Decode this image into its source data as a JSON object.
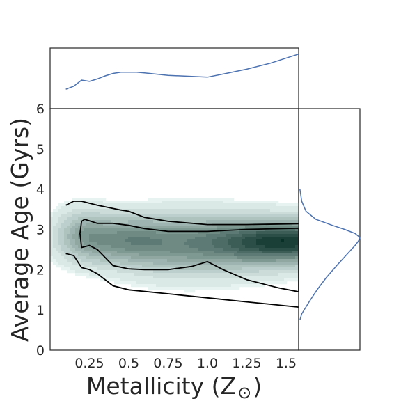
{
  "chart_data": {
    "type": "kde-joint",
    "xlabel": "Metallicity (Z",
    "xlabel_symbol": "⊙",
    "xlabel_close": ")",
    "ylabel": "Average Age (Gyrs)",
    "xlim": [
      0.0,
      1.58
    ],
    "ylim": [
      0,
      6
    ],
    "x_ticks": [
      0.25,
      0.5,
      0.75,
      1.0,
      1.25,
      1.5
    ],
    "x_tick_labels": [
      "0.25",
      "0.5",
      "0.75",
      "1.0",
      "1.25",
      "1.5"
    ],
    "y_ticks": [
      0,
      1,
      2,
      3,
      4,
      5,
      6
    ],
    "y_tick_labels": [
      "0",
      "1",
      "2",
      "3",
      "4",
      "5",
      "6"
    ],
    "colors": {
      "density": "#2e6d5c",
      "marginal": "#4c72b0",
      "contour": "#000000"
    },
    "contours": {
      "outer_upper": [
        [
          0.1,
          3.6
        ],
        [
          0.15,
          3.7
        ],
        [
          0.2,
          3.7
        ],
        [
          0.3,
          3.6
        ],
        [
          0.45,
          3.48
        ],
        [
          0.5,
          3.45
        ],
        [
          0.6,
          3.3
        ],
        [
          0.75,
          3.2
        ],
        [
          1.0,
          3.12
        ],
        [
          1.25,
          3.12
        ],
        [
          1.58,
          3.14
        ]
      ],
      "outer_lower": [
        [
          0.1,
          2.4
        ],
        [
          0.15,
          2.35
        ],
        [
          0.2,
          2.05
        ],
        [
          0.25,
          2.0
        ],
        [
          0.3,
          1.9
        ],
        [
          0.4,
          1.6
        ],
        [
          0.5,
          1.5
        ],
        [
          0.75,
          1.4
        ],
        [
          1.0,
          1.3
        ],
        [
          1.25,
          1.2
        ],
        [
          1.58,
          1.07
        ]
      ],
      "inner": [
        [
          0.2,
          3.2
        ],
        [
          0.22,
          3.25
        ],
        [
          0.3,
          3.15
        ],
        [
          0.4,
          3.15
        ],
        [
          0.5,
          3.1
        ],
        [
          0.6,
          3.02
        ],
        [
          0.75,
          2.95
        ],
        [
          1.0,
          2.95
        ],
        [
          1.25,
          3.0
        ],
        [
          1.58,
          3.03
        ],
        [
          1.58,
          1.45
        ],
        [
          1.45,
          1.55
        ],
        [
          1.25,
          1.75
        ],
        [
          1.1,
          2.0
        ],
        [
          1.0,
          2.2
        ],
        [
          0.9,
          2.08
        ],
        [
          0.75,
          2.0
        ],
        [
          0.6,
          2.0
        ],
        [
          0.5,
          2.02
        ],
        [
          0.4,
          2.1
        ],
        [
          0.3,
          2.5
        ],
        [
          0.25,
          2.6
        ],
        [
          0.2,
          2.55
        ],
        [
          0.19,
          2.9
        ],
        [
          0.2,
          3.2
        ]
      ]
    },
    "density_blobs": [
      {
        "x": 1.58,
        "y": 2.7,
        "sx": 0.32,
        "sy": 0.35,
        "w": 1.0
      },
      {
        "x": 1.2,
        "y": 2.65,
        "sx": 0.35,
        "sy": 0.5,
        "w": 0.45
      },
      {
        "x": 0.45,
        "y": 2.75,
        "sx": 0.22,
        "sy": 0.4,
        "w": 0.55
      },
      {
        "x": 0.8,
        "y": 2.6,
        "sx": 0.3,
        "sy": 0.55,
        "w": 0.4
      },
      {
        "x": 0.2,
        "y": 2.9,
        "sx": 0.12,
        "sy": 0.45,
        "w": 0.35
      }
    ],
    "top_marginal": {
      "x": [
        0.1,
        0.15,
        0.2,
        0.25,
        0.3,
        0.35,
        0.4,
        0.45,
        0.5,
        0.55,
        0.6,
        0.75,
        1.0,
        1.1,
        1.25,
        1.4,
        1.58
      ],
      "density": [
        0.32,
        0.37,
        0.47,
        0.45,
        0.49,
        0.54,
        0.58,
        0.6,
        0.6,
        0.6,
        0.59,
        0.55,
        0.52,
        0.57,
        0.65,
        0.75,
        0.9
      ]
    },
    "right_marginal": {
      "y": [
        0.75,
        0.9,
        1.2,
        1.5,
        1.8,
        2.1,
        2.4,
        2.6,
        2.7,
        2.75,
        2.8,
        2.9,
        3.0,
        3.1,
        3.25,
        3.45,
        3.7,
        4.0
      ],
      "density": [
        0.02,
        0.05,
        0.17,
        0.3,
        0.45,
        0.62,
        0.8,
        0.92,
        0.97,
        0.99,
        1.0,
        0.92,
        0.75,
        0.55,
        0.28,
        0.12,
        0.05,
        0.02
      ]
    }
  }
}
